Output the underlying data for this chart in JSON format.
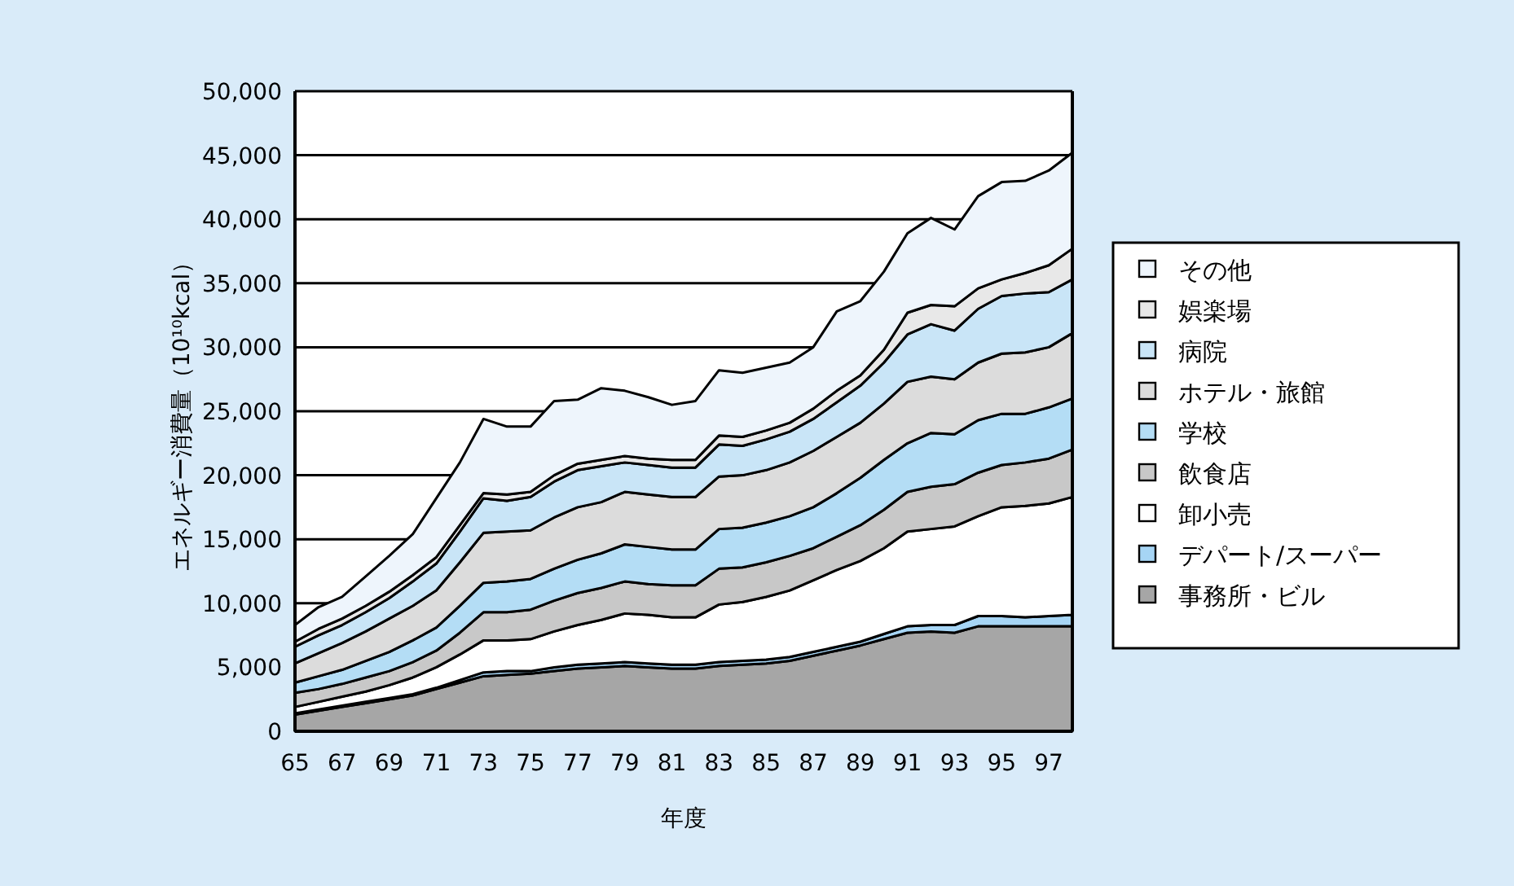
{
  "chart_data": {
    "type": "area",
    "stacked": true,
    "xlabel": "年度",
    "ylabel": "エネルギー消費量（10¹⁰kcal）",
    "grid": "y",
    "legend": "right",
    "categories": [
      "65",
      null,
      "67",
      null,
      "69",
      null,
      "71",
      null,
      "73",
      null,
      "75",
      null,
      "77",
      null,
      "79",
      null,
      "81",
      null,
      "83",
      null,
      "85",
      null,
      "87",
      null,
      "89",
      null,
      "91",
      null,
      "93",
      null,
      "95",
      null,
      "97",
      null
    ],
    "ylim": [
      0,
      50000
    ],
    "yticks": [
      0,
      {
        "value": 5000,
        "label": "5,000"
      },
      {
        "value": 10000,
        "label": "10,000"
      },
      {
        "value": 15000,
        "label": "15,000"
      },
      {
        "value": 20000,
        "label": "20,000"
      },
      {
        "value": 25000,
        "label": "25,000"
      },
      {
        "value": 30000,
        "label": "30,000"
      },
      {
        "value": 35000,
        "label": "35,000"
      },
      {
        "value": 40000,
        "label": "40,000"
      },
      {
        "value": 45000,
        "label": "45,000"
      },
      {
        "value": 50000,
        "label": "50,000"
      }
    ],
    "series": [
      {
        "name": "事務所・ビル",
        "color": "#a6a6a6",
        "values": [
          1300,
          1600,
          1900,
          2200,
          2500,
          2800,
          3300,
          3800,
          4300,
          4400,
          4500,
          4700,
          4900,
          5000,
          5100,
          5000,
          4900,
          4900,
          5100,
          5200,
          5300,
          5500,
          5900,
          6300,
          6700,
          7200,
          7700,
          7800,
          7700,
          8200,
          8200,
          8200,
          8200,
          8200
        ]
      },
      {
        "name": "デパート/スーパー",
        "color": "#a6d5f5",
        "values": [
          100,
          100,
          100,
          100,
          100,
          100,
          100,
          200,
          300,
          300,
          200,
          300,
          300,
          300,
          300,
          300,
          300,
          300,
          300,
          300,
          300,
          300,
          300,
          300,
          300,
          400,
          500,
          500,
          600,
          800,
          800,
          700,
          800,
          900
        ]
      },
      {
        "name": "卸小売",
        "color": "#ffffff",
        "values": [
          500,
          600,
          700,
          800,
          1000,
          1300,
          1600,
          2000,
          2500,
          2400,
          2500,
          2800,
          3100,
          3400,
          3800,
          3800,
          3700,
          3700,
          4500,
          4600,
          4900,
          5200,
          5600,
          6000,
          6300,
          6700,
          7400,
          7500,
          7700,
          7800,
          8500,
          8700,
          8800,
          9200
        ]
      },
      {
        "name": "飲食店",
        "color": "#c8c8c8",
        "values": [
          1100,
          1000,
          1000,
          1100,
          1100,
          1200,
          1300,
          1700,
          2200,
          2200,
          2300,
          2400,
          2500,
          2500,
          2500,
          2400,
          2500,
          2500,
          2800,
          2700,
          2700,
          2700,
          2500,
          2600,
          2800,
          3000,
          3100,
          3300,
          3300,
          3400,
          3300,
          3400,
          3500,
          3700
        ]
      },
      {
        "name": "学校",
        "color": "#b4ddf5",
        "values": [
          800,
          1000,
          1100,
          1300,
          1500,
          1700,
          1800,
          2100,
          2300,
          2400,
          2400,
          2500,
          2600,
          2700,
          2900,
          2900,
          2800,
          2800,
          3100,
          3100,
          3100,
          3100,
          3200,
          3400,
          3700,
          3900,
          3800,
          4200,
          3900,
          4100,
          4000,
          3800,
          4000,
          4000
        ]
      },
      {
        "name": "ホテル・旅館",
        "color": "#dcdcdc",
        "values": [
          1500,
          1800,
          2100,
          2300,
          2600,
          2700,
          2900,
          3400,
          3900,
          3900,
          3800,
          4000,
          4100,
          4000,
          4100,
          4100,
          4100,
          4100,
          4100,
          4100,
          4100,
          4200,
          4400,
          4400,
          4300,
          4400,
          4800,
          4400,
          4300,
          4500,
          4700,
          4800,
          4700,
          5100
        ]
      },
      {
        "name": "病院",
        "color": "#c9e5f7",
        "values": [
          1300,
          1400,
          1400,
          1500,
          1600,
          1900,
          2100,
          2400,
          2700,
          2400,
          2600,
          2800,
          2900,
          2800,
          2300,
          2300,
          2300,
          2300,
          2500,
          2300,
          2400,
          2400,
          2500,
          2700,
          2900,
          3200,
          3700,
          4100,
          3800,
          4200,
          4500,
          4600,
          4300,
          4200
        ]
      },
      {
        "name": "娯楽場",
        "color": "#e8e8e8",
        "values": [
          400,
          500,
          500,
          500,
          500,
          500,
          500,
          500,
          400,
          500,
          400,
          500,
          500,
          500,
          500,
          500,
          600,
          600,
          700,
          700,
          700,
          700,
          800,
          900,
          800,
          1000,
          1700,
          1500,
          1900,
          1600,
          1300,
          1600,
          2100,
          2400
        ]
      },
      {
        "name": "その他",
        "color": "#eef5fc",
        "values": [
          1300,
          1700,
          1700,
          2300,
          2800,
          3200,
          4600,
          4900,
          5800,
          5300,
          5100,
          5800,
          5000,
          5600,
          5100,
          4800,
          4300,
          4600,
          5100,
          5000,
          4900,
          4700,
          4800,
          6200,
          5800,
          6100,
          6200,
          6800,
          6000,
          7200,
          7600,
          7200,
          7400,
          7500
        ]
      }
    ]
  }
}
